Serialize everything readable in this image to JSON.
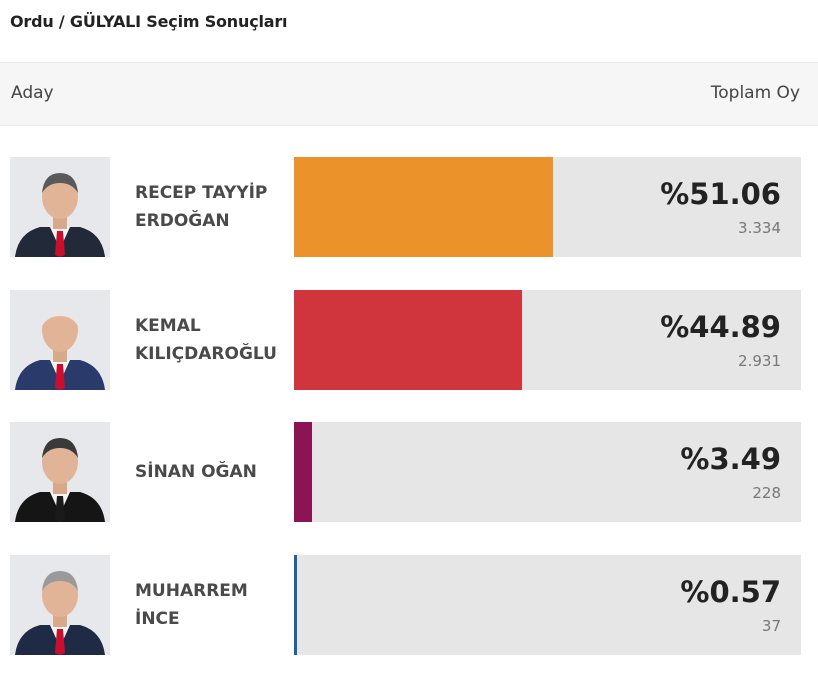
{
  "page": {
    "title": "Ordu / GÜLYALI Seçim Sonuçları"
  },
  "table_header": {
    "candidate_label": "Aday",
    "total_label": "Toplam Oy"
  },
  "chart_data": {
    "type": "bar",
    "orientation": "horizontal",
    "title": "Ordu / GÜLYALI Seçim Sonuçları",
    "categories": [
      "RECEP TAYYİP ERDOĞAN",
      "KEMAL KILIÇDAROĞLU",
      "SİNAN OĞAN",
      "MUHARREM İNCE"
    ],
    "values": [
      51.06,
      44.89,
      3.49,
      0.57
    ],
    "xlim": [
      0,
      100
    ]
  },
  "candidates": [
    {
      "name": "RECEP TAYYİP\nERDOĞAN",
      "percent": 51.06,
      "percent_label": "%51.06",
      "votes": "3.334",
      "color": "#ec922b",
      "tie": "#c8102e",
      "hair": "#5a5a5a",
      "suit": "#222a3a",
      "avatar_icon": "candidate-photo-icon"
    },
    {
      "name": "KEMAL\nKILIÇDAROĞLU",
      "percent": 44.89,
      "percent_label": "%44.89",
      "votes": "2.931",
      "color": "#d0343c",
      "tie": "#c8102e",
      "hair": "#e8e8e8",
      "suit": "#2a3b6b",
      "avatar_icon": "candidate-photo-icon"
    },
    {
      "name": "SİNAN OĞAN",
      "percent": 3.49,
      "percent_label": "%3.49",
      "votes": "228",
      "color": "#8a1454",
      "tie": "#1a1a1a",
      "hair": "#3a3a3a",
      "suit": "#151515",
      "avatar_icon": "candidate-photo-icon"
    },
    {
      "name": "MUHARREM\nİNCE",
      "percent": 0.57,
      "percent_label": "%0.57",
      "votes": "37",
      "color": "#1f5fa8",
      "tie": "#c8102e",
      "hair": "#9a9a9a",
      "suit": "#1f2a44",
      "avatar_icon": "candidate-photo-icon"
    }
  ]
}
